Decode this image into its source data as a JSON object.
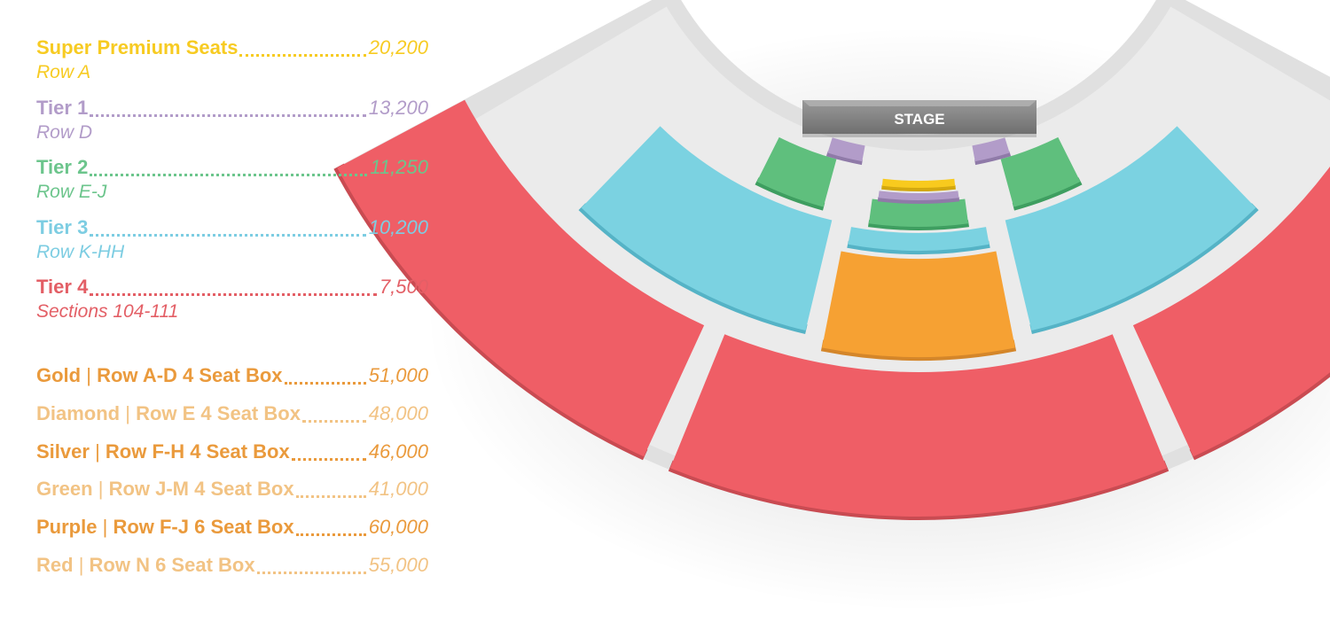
{
  "tiers": [
    {
      "name": "Super Premium Seats",
      "price": "20,200",
      "sub": "Row A",
      "color": "#f7cb22"
    },
    {
      "name": "Tier 1",
      "price": "13,200",
      "sub": "Row D",
      "color": "#b29cc9"
    },
    {
      "name": "Tier 2",
      "price": "11,250",
      "sub": "Row E-J",
      "color": "#6cc58c"
    },
    {
      "name": "Tier 3",
      "price": "10,200",
      "sub": "Row K-HH",
      "color": "#7dcde2"
    },
    {
      "name": "Tier 4",
      "price": "7,500",
      "sub": "Sections 104-111",
      "color": "#e35f66"
    }
  ],
  "boxes": [
    {
      "name": "Gold",
      "detail": "Row A-D 4 Seat Box",
      "price": "51,000",
      "color": "#ea9a3c"
    },
    {
      "name": "Diamond",
      "detail": "Row E 4 Seat Box",
      "price": "48,000",
      "color": "#f2c384"
    },
    {
      "name": "Silver",
      "detail": "Row F-H 4 Seat Box",
      "price": "46,000",
      "color": "#ea9a3c"
    },
    {
      "name": "Green",
      "detail": "Row J-M 4 Seat Box",
      "price": "41,000",
      "color": "#f2c384"
    },
    {
      "name": "Purple",
      "detail": "Row F-J 6 Seat Box",
      "price": "60,000",
      "color": "#ea9a3c"
    },
    {
      "name": "Red",
      "detail": "Row N 6 Seat Box",
      "price": "55,000",
      "color": "#f2c384"
    }
  ],
  "separator": "|",
  "stage": {
    "label": "STAGE"
  },
  "section_colors": {
    "red": "#ef5e66",
    "red_edge": "#c94b52",
    "blue": "#7bd2e1",
    "blue_edge": "#55b3c6",
    "orange": "#f6a133",
    "orange_edge": "#d4862a",
    "green": "#5fbf7d",
    "green_edge": "#3e9e60",
    "purple": "#b29cc9",
    "purple_edge": "#8f7aa8",
    "yellow": "#f8ca1e",
    "yellow_edge": "#d3a80f"
  }
}
